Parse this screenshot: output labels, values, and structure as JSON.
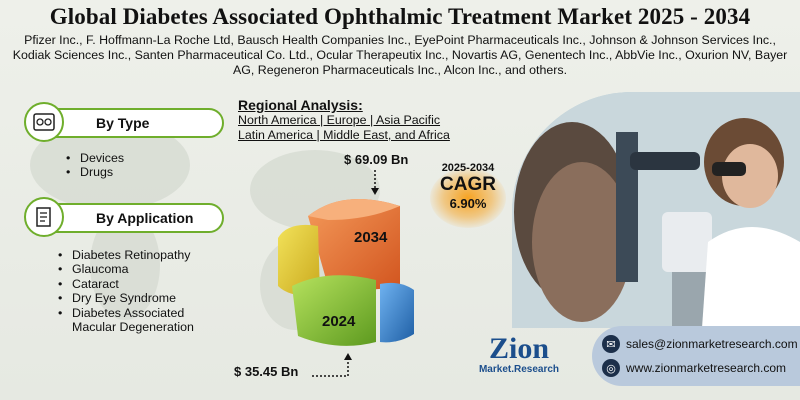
{
  "header": {
    "title": "Global Diabetes Associated Ophthalmic Treatment Market 2025 - 2034",
    "companies": "Pfizer Inc., F. Hoffmann-La Roche Ltd, Bausch Health Companies Inc., EyePoint Pharmaceuticals Inc., Johnson & Johnson Services Inc., Kodiak Sciences Inc., Santen Pharmaceutical Co. Ltd., Ocular Therapeutix Inc., Novartis AG, Genentech Inc., AbbVie Inc., Oxurion NV, Bayer AG, Regeneron Pharmaceuticals Inc., Alcon Inc., and others."
  },
  "by_type": {
    "label": "By Type",
    "icon": "eye-chart-icon",
    "items": [
      "Devices",
      "Drugs"
    ]
  },
  "by_application": {
    "label": "By Application",
    "icon": "document-icon",
    "items": [
      "Diabetes Retinopathy",
      "Glaucoma",
      "Cataract",
      "Dry Eye Syndrome",
      "Diabetes Associated",
      "Macular Degeneration"
    ]
  },
  "regional": {
    "heading": "Regional Analysis:",
    "line1": "North America | Europe | Asia Pacific",
    "line2": "Latin America | Middle East, and Africa"
  },
  "market": {
    "value_2034": "$ 69.09 Bn",
    "value_2024": "$ 35.45 Bn",
    "label_2034": "2034",
    "label_2024": "2024"
  },
  "cagr": {
    "years": "2025-2034",
    "label": "CAGR",
    "value": "6.90%"
  },
  "brand": {
    "name": "Zion",
    "sub": "Market.Research"
  },
  "contact": {
    "email": "sales@zionmarketresearch.com",
    "website": "www.zionmarketresearch.com"
  },
  "colors": {
    "accent_green": "#6fae2c",
    "cagr_orange": "#f6a323",
    "brand_blue": "#1b4e8c"
  }
}
